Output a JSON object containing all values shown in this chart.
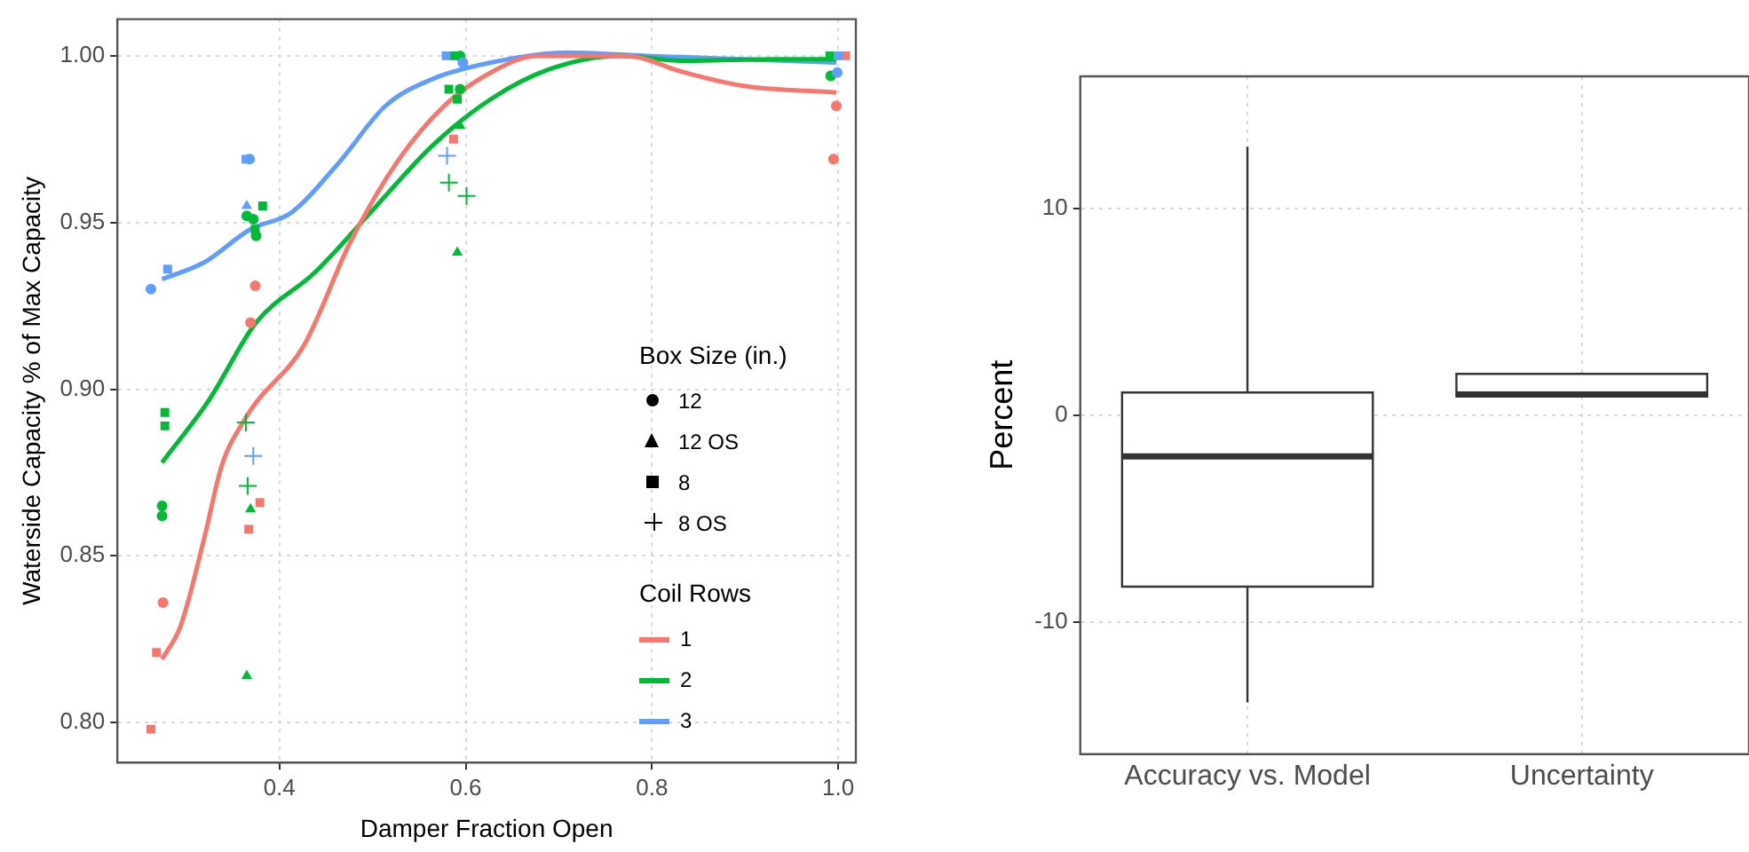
{
  "chart_data": [
    {
      "type": "scatter",
      "xlabel": "Damper Fraction Open",
      "ylabel": "Waterside Capacity % of Max Capacity",
      "legend": "right",
      "legend_title": "Box Size (in.)",
      "annotations": [
        "12",
        "12 OS",
        "8",
        "8 OS",
        "Coil Rows"
      ],
      "grid": true,
      "xlim": [
        0.226,
        1.019
      ],
      "xticks": [
        0.4,
        0.6,
        0.8,
        {
          "value": 1,
          "label": "1.0"
        }
      ],
      "ylim": [
        0.788,
        1.011
      ],
      "yticks": [
        {
          "value": 0.8,
          "label": "0.80"
        },
        0.85,
        {
          "value": 0.9,
          "label": "0.90"
        },
        0.95,
        {
          "value": 1,
          "label": "1.00"
        }
      ],
      "series": [
        {
          "type": "scatter",
          "marker": "circle",
          "color": "#619cff",
          "x": [
            0.262,
            0.368,
            0.597,
            0.999
          ],
          "values": [
            0.93,
            0.969,
            0.998,
            0.995
          ]
        },
        {
          "type": "scatter",
          "marker": "circle",
          "color": "#00ba38",
          "x": [
            0.365,
            0.372,
            0.375,
            0.594,
            0.594,
            0.992,
            0.274,
            0.274
          ],
          "values": [
            0.952,
            0.951,
            0.946,
            1.0,
            0.99,
            0.994,
            0.865,
            0.862
          ]
        },
        {
          "type": "scatter",
          "marker": "circle",
          "color": "#f8766d",
          "x": [
            0.374,
            0.369,
            0.998,
            0.995,
            0.275
          ],
          "values": [
            0.931,
            0.92,
            0.985,
            0.969,
            0.836
          ]
        },
        {
          "type": "scatter",
          "marker": "triangle",
          "color": "#619cff",
          "x": [
            0.365
          ],
          "values": [
            0.955
          ]
        },
        {
          "type": "scatter",
          "marker": "triangle",
          "color": "#00ba38",
          "x": [
            0.594,
            0.591,
            0.369,
            0.365
          ],
          "values": [
            0.979,
            0.941,
            0.864,
            0.814
          ]
        },
        {
          "type": "scatter",
          "marker": "square",
          "color": "#619cff",
          "x": [
            0.28,
            0.364,
            0.579,
            1.0
          ],
          "values": [
            0.936,
            0.969,
            1.0,
            1.0
          ]
        },
        {
          "type": "scatter",
          "marker": "square",
          "color": "#00ba38",
          "x": [
            0.382,
            0.374,
            0.586,
            0.582,
            0.591,
            0.991,
            0.277,
            0.277
          ],
          "values": [
            0.955,
            0.948,
            1.0,
            0.99,
            0.987,
            1.0,
            0.893,
            0.889
          ]
        },
        {
          "type": "scatter",
          "marker": "square",
          "color": "#f8766d",
          "x": [
            0.587,
            1.008,
            0.379,
            0.367,
            0.268,
            0.262
          ],
          "values": [
            0.975,
            1.0,
            0.866,
            0.858,
            0.821,
            0.798
          ]
        },
        {
          "type": "scatter",
          "marker": "cross",
          "color": "#619cff",
          "x": [
            0.58,
            0.372
          ],
          "values": [
            0.97,
            0.88
          ]
        },
        {
          "type": "scatter",
          "marker": "cross",
          "color": "#00ba38",
          "x": [
            0.582,
            0.601,
            0.364,
            0.366
          ],
          "values": [
            0.962,
            0.958,
            0.89,
            0.871
          ]
        },
        {
          "name": "1",
          "type": "line",
          "color": "#f8766d",
          "x": [
            0.274,
            0.294,
            0.319,
            0.338,
            0.363,
            0.375,
            0.426,
            0.476,
            0.526,
            0.577,
            0.627,
            0.677,
            0.714,
            0.772,
            0.835,
            0.898,
            0.998
          ],
          "values": [
            0.819,
            0.829,
            0.855,
            0.877,
            0.891,
            0.896,
            0.913,
            0.944,
            0.968,
            0.985,
            0.995,
            1.0,
            1.0,
            1.0,
            0.995,
            0.991,
            0.989
          ]
        },
        {
          "name": "2",
          "type": "line",
          "color": "#00ba38",
          "x": [
            0.274,
            0.325,
            0.375,
            0.438,
            0.501,
            0.564,
            0.627,
            0.69,
            0.765,
            0.835,
            0.929,
            0.998
          ],
          "values": [
            0.878,
            0.897,
            0.92,
            0.935,
            0.954,
            0.973,
            0.987,
            0.996,
            1.0,
            0.9985,
            0.999,
            0.999
          ]
        },
        {
          "name": "3",
          "type": "line",
          "color": "#619cff",
          "x": [
            0.274,
            0.319,
            0.369,
            0.413,
            0.464,
            0.514,
            0.564,
            0.627,
            0.709,
            0.794,
            0.898,
            0.998
          ],
          "values": [
            0.933,
            0.938,
            0.948,
            0.953,
            0.968,
            0.985,
            0.993,
            0.998,
            1.001,
            1.0,
            0.999,
            0.998
          ]
        }
      ]
    },
    {
      "type": "box",
      "ylabel": "Percent",
      "grid": true,
      "categories": [
        "Accuracy vs. Model",
        "Uncertainty"
      ],
      "ylim": [
        -16.4,
        16.4
      ],
      "yticks": [
        -10,
        0,
        10
      ],
      "boxes": [
        {
          "low": -13.9,
          "q1": -8.3,
          "median": -2.0,
          "q3": 1.1,
          "high": 13.0
        },
        {
          "low": 0.9,
          "q1": 0.9,
          "median": 1.0,
          "q3": 2.0,
          "high": 2.0
        }
      ]
    }
  ]
}
